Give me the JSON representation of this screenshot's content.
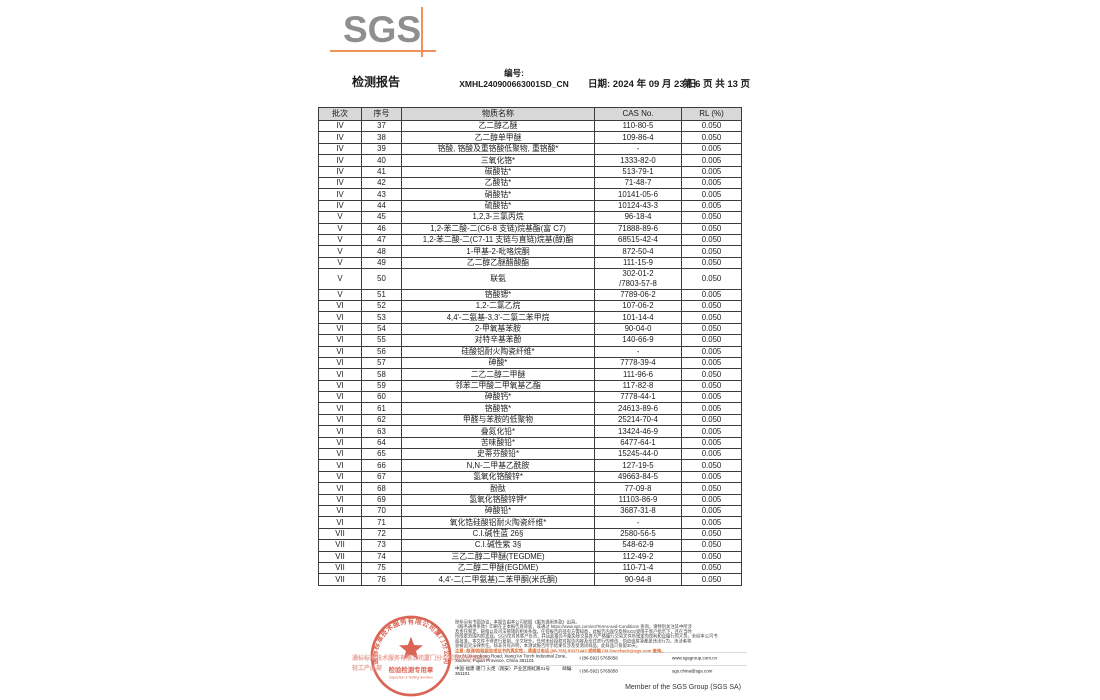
{
  "header": {
    "logo_text": "SGS",
    "title": "检测报告",
    "no_label": "编号:",
    "no_value": "XMHL240900663001SD_CN",
    "date": "日期: 2024 年 09 月 23 日",
    "page": "第 6 页 共 13 页"
  },
  "table": {
    "columns": [
      "批次",
      "序号",
      "物质名称",
      "CAS No.",
      "RL (%)"
    ],
    "rows": [
      [
        "IV",
        "37",
        "乙二醇乙醚",
        "110-80-5",
        "0.050"
      ],
      [
        "IV",
        "38",
        "乙二醇单甲醚",
        "109-86-4",
        "0.050"
      ],
      [
        "IV",
        "39",
        "铬酸, 铬酸及重铬酸低聚物, 重铬酸*",
        "-",
        "0.005"
      ],
      [
        "IV",
        "40",
        "三氧化铬*",
        "1333-82-0",
        "0.005"
      ],
      [
        "IV",
        "41",
        "碳酸钴*",
        "513-79-1",
        "0.005"
      ],
      [
        "IV",
        "42",
        "乙酸钴*",
        "71-48-7",
        "0.005"
      ],
      [
        "IV",
        "43",
        "硝酸钴*",
        "10141-05-6",
        "0.005"
      ],
      [
        "IV",
        "44",
        "硫酸钴*",
        "10124-43-3",
        "0.005"
      ],
      [
        "V",
        "45",
        "1,2,3-三氯丙烷",
        "96-18-4",
        "0.050"
      ],
      [
        "V",
        "46",
        "1,2-苯二酸-二(C6-8 支链)烷基酯(富 C7)",
        "71888-89-6",
        "0.050"
      ],
      [
        "V",
        "47",
        "1,2-苯二酸-二(C7-11 支链与直链)烷基(醇)酯",
        "68515-42-4",
        "0.050"
      ],
      [
        "V",
        "48",
        "1-甲基-2-吡咯烷酮",
        "872-50-4",
        "0.050"
      ],
      [
        "V",
        "49",
        "乙二醇乙醚醋酸酯",
        "111-15-9",
        "0.050"
      ],
      [
        "V",
        "50",
        "联氨",
        "302-01-2\n/7803-57-8",
        "0.050"
      ],
      [
        "V",
        "51",
        "铬酸锶*",
        "7789-06-2",
        "0.005"
      ],
      [
        "VI",
        "52",
        "1,2-二氯乙烷",
        "107-06-2",
        "0.050"
      ],
      [
        "VI",
        "53",
        "4,4'-二氨基-3,3'-二氯二苯甲烷",
        "101-14-4",
        "0.050"
      ],
      [
        "VI",
        "54",
        "2-甲氧基苯胺",
        "90-04-0",
        "0.050"
      ],
      [
        "VI",
        "55",
        "对特辛基苯酚",
        "140-66-9",
        "0.050"
      ],
      [
        "VI",
        "56",
        "硅酸铝耐火陶瓷纤维*",
        "-",
        "0.005"
      ],
      [
        "VI",
        "57",
        "砷酸*",
        "7778-39-4",
        "0.005"
      ],
      [
        "VI",
        "58",
        "二乙二醇二甲醚",
        "111-96-6",
        "0.050"
      ],
      [
        "VI",
        "59",
        "邻苯二甲酸二甲氧基乙酯",
        "117-82-8",
        "0.050"
      ],
      [
        "VI",
        "60",
        "砷酸钙*",
        "7778-44-1",
        "0.005"
      ],
      [
        "VI",
        "61",
        "铬酸铬*",
        "24613-89-6",
        "0.005"
      ],
      [
        "VI",
        "62",
        "甲醛与苯胺的低聚物",
        "25214-70-4",
        "0.050"
      ],
      [
        "VI",
        "63",
        "叠氮化铅*",
        "13424-46-9",
        "0.005"
      ],
      [
        "VI",
        "64",
        "苦味酸铅*",
        "6477-64-1",
        "0.005"
      ],
      [
        "VI",
        "65",
        "史蒂芬酸铅*",
        "15245-44-0",
        "0.005"
      ],
      [
        "VI",
        "66",
        "N,N-二甲基乙酰胺",
        "127-19-5",
        "0.050"
      ],
      [
        "VI",
        "67",
        "氢氧化铬酸锌*",
        "49663-84-5",
        "0.005"
      ],
      [
        "VI",
        "68",
        "酚酞",
        "77-09-8",
        "0.050"
      ],
      [
        "VI",
        "69",
        "氢氧化铬酸锌钾*",
        "11103-86-9",
        "0.005"
      ],
      [
        "VI",
        "70",
        "砷酸铅*",
        "3687-31-8",
        "0.005"
      ],
      [
        "VI",
        "71",
        "氧化锆硅酸铝耐火陶瓷纤维*",
        "-",
        "0.005"
      ],
      [
        "VII",
        "72",
        "C.I.碱性蓝 26§",
        "2580-56-5",
        "0.050"
      ],
      [
        "VII",
        "73",
        "C.I.碱性紫 3§",
        "548-62-9",
        "0.050"
      ],
      [
        "VII",
        "74",
        "三乙二醇二甲醚(TEGDME)",
        "112-49-2",
        "0.050"
      ],
      [
        "VII",
        "75",
        "乙二醇二甲醚(EGDME)",
        "110-71-4",
        "0.050"
      ],
      [
        "VII",
        "76",
        "4,4'-二(二甲氨基)二苯甲酮(米氏酮)",
        "90-94-8",
        "0.050"
      ]
    ]
  },
  "footer": {
    "stamp": {
      "ring_text": "通标标准技术服务有限公司厦门分公司",
      "seal_title": "检验检测专用章",
      "seal_subtitle": "Inspection & Testing Services"
    },
    "watermark_line1": "通标标准技术服务有限公司厦门分公司翔安检测中心",
    "watermark_line2": "轻工产品部",
    "disclaimer_lines": [
      "除非另有书面协议，本报告由本公司依据《服务通用条款》出具。",
      "《服务通用条款》印刷在正本报告底背面，或通过 https://www.sgs.com/en/Terms-and-Conditions 查询，请特别关注其中所涉",
      "及责任限定、赔偿以及司法管辖的相关条款。任何报告的持有方需知悉，此报告内容仅反映SGS受限于客户指示下，且在当时",
      "所限定范围内的发现。SGS仅对其客户负责，并且此报告不能免除交易各方严格履行交易文件所规定的权利和应履行的义务。未经本公司书",
      "面批准，本文件不得进行复制，全文除外。任何未经授权对报告内容及形式进行的修改、伪造或拼凑都是违法行为，违法者将",
      "会被追究法律责任。除非另有声明，本测试报告所示结果仅涉及受测试样品，此样品只保留30天。"
    ],
    "notice": "注意: 检测/检验报告或证书的真实性，请通过电话 (86-755) 83071443 或邮箱 CN.Doccheck@sgs.com 查询。",
    "address_en": "No.31 Xianghong Road, Xiang'An Torch Industrial Zone, Xiamen, Fujian Province, China  361101",
    "address_cn": "中国·福建·厦门·火炬（翔安）产业区翔虹路31号",
    "postcode": "邮编: 361101",
    "phone1": "t (86-592) 5765858",
    "website": "www.sgsgroup.com.cn",
    "phone2": "t (86-592) 5765858",
    "email": "sgs.china@sgs.com",
    "member_line": "Member of the SGS Group (SGS SA)"
  },
  "colors": {
    "logo_gray": "#8f8f8f",
    "logo_orange": "#f0935a",
    "table_header_bg": "#d8d8d8",
    "stamp_red": "#d85a48",
    "watermark_pink": "#e59a91",
    "notice_orange": "#e06a2a"
  }
}
